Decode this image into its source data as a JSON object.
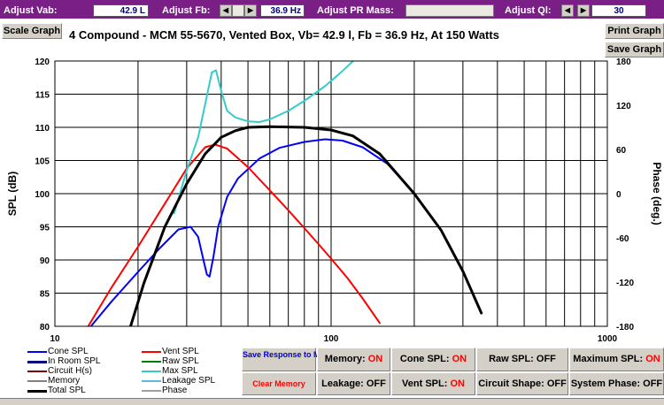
{
  "topbar": {
    "vab_label": "Adjust Vab:",
    "vab_value": "42.9 L",
    "fb_label": "Adjust Fb:",
    "fb_value": "36.9 Hz",
    "pr_label": "Adjust PR Mass:",
    "ql_label": "Adjust Ql:",
    "ql_value": "30",
    "arrow_left": "◀",
    "arrow_right": "▶"
  },
  "buttons": {
    "scale_graph": "Scale Graph",
    "print_graph": "Print Graph",
    "save_graph": "Save Graph",
    "save_response": "Save Response to Memory",
    "clear_memory": "Clear Memory"
  },
  "toggles": [
    {
      "label": "Memory:",
      "state": "ON"
    },
    {
      "label": "Cone SPL:",
      "state": "ON"
    },
    {
      "label": "Raw SPL:",
      "state": "OFF"
    },
    {
      "label": "Maximum SPL:",
      "state": "ON"
    },
    {
      "label": "Leakage:",
      "state": "OFF"
    },
    {
      "label": "Vent SPL:",
      "state": "ON"
    },
    {
      "label": "Circuit Shape:",
      "state": "OFF"
    },
    {
      "label": "System Phase:",
      "state": "OFF"
    }
  ],
  "colors": {
    "cone": "#0000ff",
    "vent": "#ff0000",
    "max": "#33cccc",
    "total": "#000000",
    "in_room": "#000080",
    "raw": "#008000",
    "circuit": "#800000",
    "leakage": "#5fb7e6",
    "memory": "#808080",
    "phase": "#a0a0a0",
    "on": "#ff0000",
    "accent": "#7a1f86"
  },
  "legend": [
    {
      "label": "Cone SPL",
      "color": "#0000ff"
    },
    {
      "label": "Vent SPL",
      "color": "#ff0000"
    },
    {
      "label": "In Room SPL",
      "color": "#000080"
    },
    {
      "label": "Raw SPL",
      "color": "#008000"
    },
    {
      "label": "Circuit H(s)",
      "color": "#800000"
    },
    {
      "label": "Max SPL",
      "color": "#33cccc"
    },
    {
      "label": "Memory",
      "color": "#808080"
    },
    {
      "label": "Leakage SPL",
      "color": "#5fb7e6"
    },
    {
      "label": "Total SPL",
      "color": "#000000"
    },
    {
      "label": "Phase",
      "color": "#a0a0a0"
    }
  ],
  "chart_data": {
    "type": "line",
    "title": "4 Compound - MCM 55-5670,  Vented Box, Vb= 42.9 l,  Fb = 36.9 Hz,  At 150 Watts",
    "xlabel": "",
    "ylabel": "SPL (dB)",
    "y2label": "Phase (deg.)",
    "xscale": "log",
    "xlim": [
      10,
      1000
    ],
    "ylim": [
      80,
      120
    ],
    "y2lim": [
      -180,
      180
    ],
    "x_ticks": [
      "10",
      "100",
      "1000"
    ],
    "y_ticks": [
      "80",
      "85",
      "90",
      "95",
      "100",
      "105",
      "110",
      "115",
      "120"
    ],
    "y2_ticks": [
      "-180",
      "-120",
      "-60",
      "0",
      "60",
      "120",
      "180"
    ],
    "grid": true,
    "series": [
      {
        "name": "Cone SPL",
        "color": "#0000ff",
        "x": [
          13.5,
          16,
          20,
          24,
          28,
          31,
          33,
          34.5,
          35.5,
          36.3,
          37.5,
          39,
          42,
          46,
          55,
          65,
          80,
          95,
          110,
          130,
          160,
          200,
          250,
          300,
          350
        ],
        "y": [
          80,
          83.7,
          88.2,
          91.8,
          94.6,
          95,
          93.5,
          90,
          87.8,
          87.5,
          90.5,
          95,
          99.5,
          102.3,
          105.3,
          106.9,
          107.8,
          108.2,
          108,
          107,
          104.5,
          100,
          94.5,
          88.3,
          82
        ]
      },
      {
        "name": "Vent SPL",
        "color": "#ff0000",
        "x": [
          13.2,
          16,
          20,
          25,
          30,
          35,
          38,
          42,
          50,
          60,
          70,
          80,
          90,
          100,
          115,
          130,
          150
        ],
        "y": [
          80,
          85.8,
          92,
          98.5,
          103.8,
          107,
          107.4,
          106.8,
          104,
          100.5,
          97.5,
          94.8,
          92.4,
          90.2,
          87.2,
          84.2,
          80.5
        ]
      },
      {
        "name": "Max SPL",
        "color": "#33cccc",
        "x": [
          27,
          30,
          33,
          35,
          37,
          38.3,
          40,
          42,
          45,
          50,
          55,
          60,
          70,
          80,
          95,
          110,
          120
        ],
        "y": [
          97,
          103.5,
          108.5,
          113.5,
          118.3,
          118.6,
          115.5,
          112.5,
          111.5,
          110.9,
          110.8,
          111.2,
          112.5,
          114,
          116.2,
          118.5,
          120
        ]
      },
      {
        "name": "Total SPL",
        "color": "#000000",
        "x": [
          18.8,
          21,
          25,
          30,
          35,
          40,
          45,
          50,
          60,
          80,
          100,
          120,
          150,
          200,
          250,
          300,
          350
        ],
        "y": [
          80,
          86.5,
          95,
          101.5,
          106,
          108.5,
          109.5,
          110,
          110.1,
          110,
          109.6,
          108.7,
          106,
          100,
          94.5,
          88.3,
          82
        ]
      }
    ]
  }
}
